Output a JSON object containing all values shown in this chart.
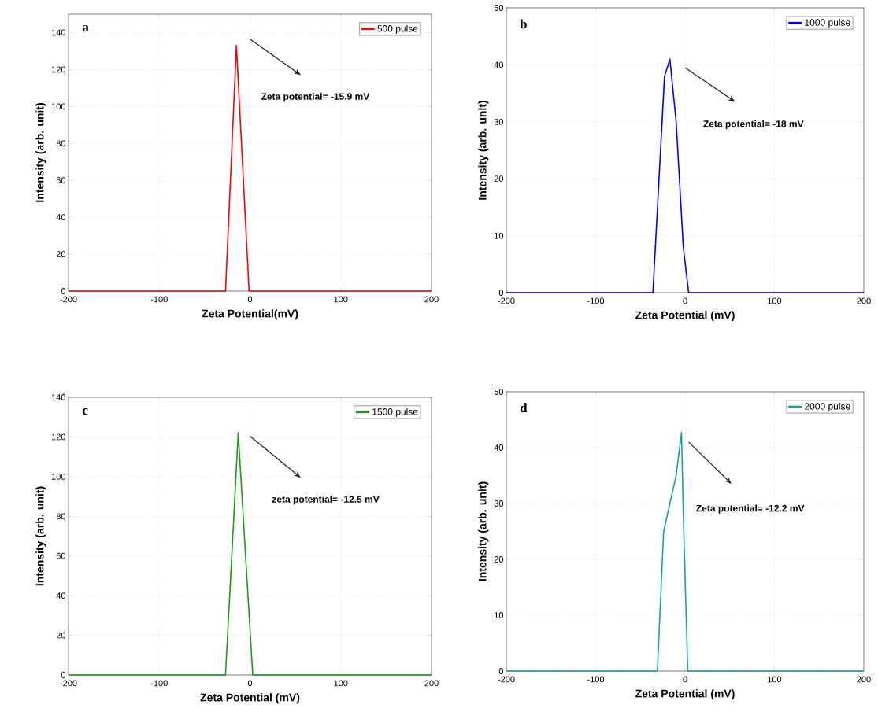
{
  "chart_data": [
    {
      "type": "line",
      "title": "a",
      "xlabel": "Zeta Potential(mV)",
      "ylabel": "Intensity (arb. unit)",
      "xlim": [
        -200,
        200
      ],
      "ylim": [
        0,
        150
      ],
      "xticks": [
        -200,
        -100,
        0,
        100,
        200
      ],
      "yticks": [
        0,
        20,
        40,
        60,
        80,
        100,
        120,
        140
      ],
      "series": [
        {
          "name": "500 pulse",
          "color": "#ff0000",
          "x": [
            -200,
            -27,
            -15,
            -1,
            200
          ],
          "values": [
            0,
            0,
            133,
            0,
            0
          ]
        }
      ],
      "annotations": [
        "Zeta potential= -15.9 mV"
      ],
      "grid": true,
      "legend": "top right",
      "line_style": "solid"
    },
    {
      "type": "line",
      "title": "b",
      "xlabel": "Zeta Potential (mV)",
      "ylabel": "Intensity (arb. unit)",
      "xlim": [
        -200,
        200
      ],
      "ylim": [
        0,
        50
      ],
      "xticks": [
        -200,
        -100,
        0,
        100,
        200
      ],
      "yticks": [
        0,
        10,
        20,
        30,
        40,
        50
      ],
      "series": [
        {
          "name": "1000 pulse",
          "color": "#0000ff",
          "x": [
            -200,
            -36,
            -23,
            -17,
            -10,
            -2,
            4,
            200
          ],
          "values": [
            0,
            0,
            38,
            41,
            30,
            8,
            0,
            0
          ]
        }
      ],
      "annotations": [
        "Zeta potential= -18 mV"
      ],
      "grid": true,
      "legend": "top right",
      "line_style": "solid"
    },
    {
      "type": "line",
      "title": "c",
      "xlabel": "Zeta Potential (mV)",
      "ylabel": "Intensity (arb. unit)",
      "xlim": [
        -200,
        200
      ],
      "ylim": [
        0,
        140
      ],
      "xticks": [
        -200,
        -100,
        0,
        100,
        200
      ],
      "yticks": [
        0,
        20,
        40,
        60,
        80,
        100,
        120,
        140
      ],
      "series": [
        {
          "name": "1500 pulse",
          "color": "#1a9a1a",
          "x": [
            -200,
            -27,
            -13,
            3,
            200
          ],
          "values": [
            0,
            0,
            122,
            0,
            0
          ]
        }
      ],
      "annotations": [
        "zeta potential= -12.5 mV"
      ],
      "grid": true,
      "legend": "top right",
      "line_style": "solid"
    },
    {
      "type": "line",
      "title": "d",
      "xlabel": "Zeta Potential (mV)",
      "ylabel": "Intensity (arb. unit)",
      "xlim": [
        -200,
        200
      ],
      "ylim": [
        0,
        50
      ],
      "xticks": [
        -200,
        -100,
        0,
        100,
        200
      ],
      "yticks": [
        0,
        10,
        20,
        30,
        40,
        50
      ],
      "series": [
        {
          "name": "2000 pulse",
          "color": "#1aa0a0",
          "x": [
            -200,
            -31,
            -24,
            -10,
            -4,
            -2,
            3,
            200
          ],
          "values": [
            0,
            0,
            25,
            35,
            42.7,
            28,
            0,
            0
          ]
        }
      ],
      "annotations": [
        "Zeta potential= -12.2 mV"
      ],
      "grid": true,
      "legend": "top right",
      "line_style": "solid"
    }
  ]
}
